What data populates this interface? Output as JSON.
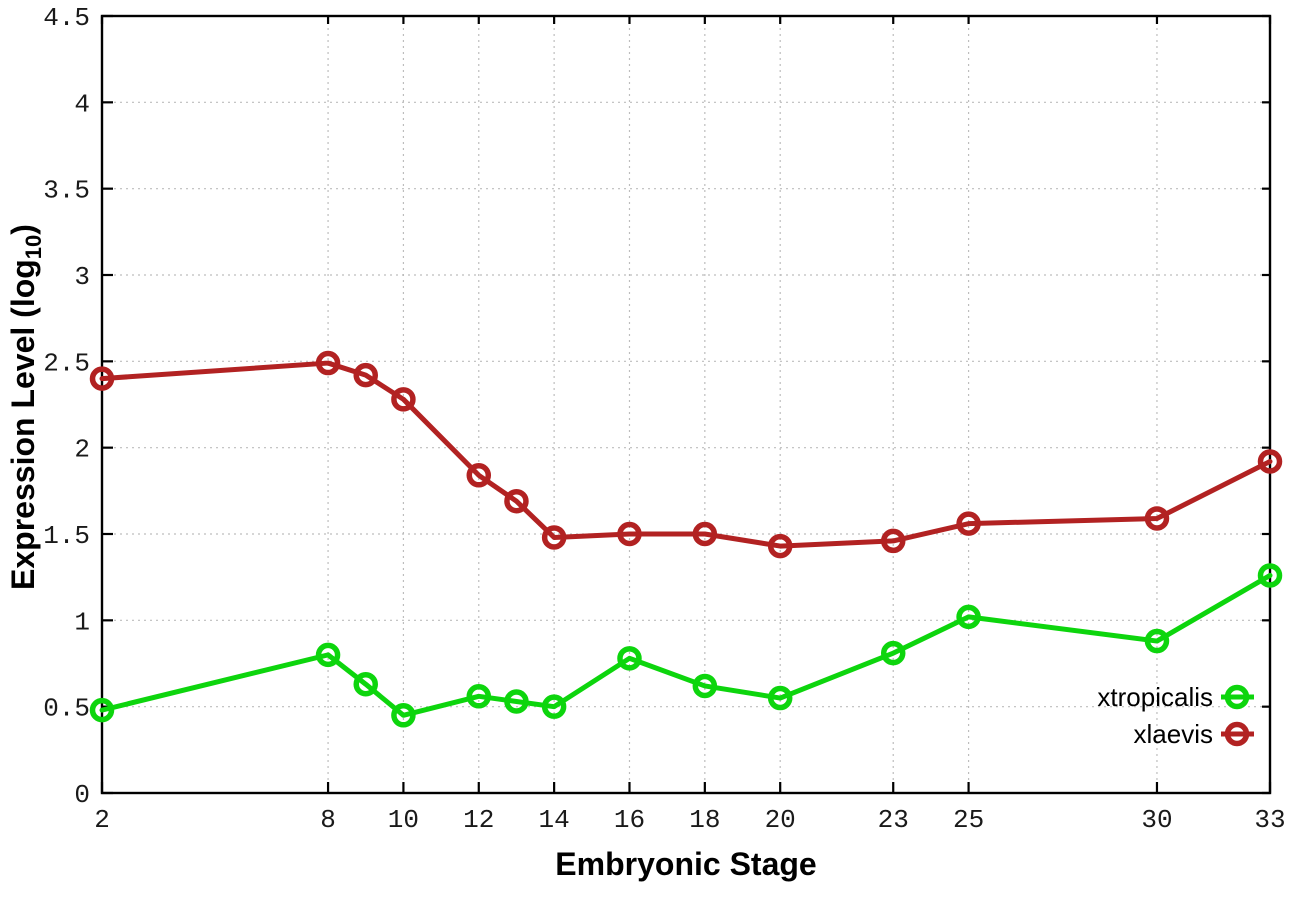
{
  "chart_data": {
    "type": "line",
    "title": "",
    "xlabel": "Embryonic Stage",
    "ylabel_main": "Expression Level (log",
    "ylabel_sub": "10",
    "ylabel_suffix": ")",
    "xlim": [
      2,
      33
    ],
    "ylim": [
      0,
      4.5
    ],
    "grid": true,
    "legend_position": "bottom-right-inside",
    "x_ticks": [
      2,
      8,
      10,
      12,
      14,
      16,
      18,
      20,
      23,
      25,
      30,
      33
    ],
    "x_tick_labels": [
      "2",
      "8",
      "10",
      "12",
      "14",
      "16",
      "18",
      "20",
      "23",
      "25",
      "30",
      "33"
    ],
    "y_ticks": [
      0,
      0.5,
      1,
      1.5,
      2,
      2.5,
      3,
      3.5,
      4,
      4.5
    ],
    "y_tick_labels": [
      "0",
      "0.5",
      "1",
      "1.5",
      "2",
      "2.5",
      "3",
      "3.5",
      "4",
      "4.5"
    ],
    "x": [
      2,
      8,
      9,
      10,
      12,
      13,
      14,
      16,
      18,
      20,
      23,
      25,
      30,
      33
    ],
    "series": [
      {
        "name": "xtropicalis",
        "color": "#0dd50d",
        "values": [
          0.48,
          0.8,
          0.63,
          0.45,
          0.56,
          0.53,
          0.5,
          0.78,
          0.62,
          0.55,
          0.81,
          1.02,
          0.88,
          1.26
        ]
      },
      {
        "name": "xlaevis",
        "color": "#b22222",
        "values": [
          2.4,
          2.49,
          2.42,
          2.28,
          1.84,
          1.69,
          1.48,
          1.5,
          1.5,
          1.43,
          1.46,
          1.56,
          1.59,
          1.92
        ]
      }
    ]
  },
  "colors": {
    "background": "#ffffff",
    "border": "#000000",
    "grid": "#bdbdbd",
    "tick_text": "#1a1a1a",
    "series_green": "#0dd50d",
    "series_red": "#b22222"
  }
}
